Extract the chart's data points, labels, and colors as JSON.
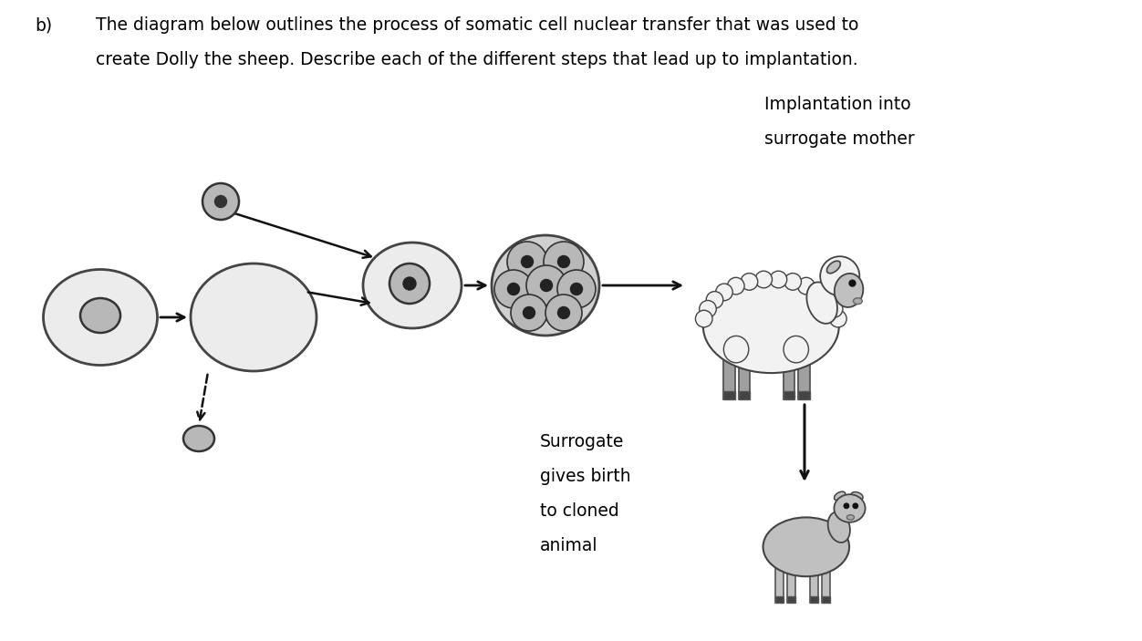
{
  "title_b": "b)",
  "question_text_line1": "The diagram below outlines the process of somatic cell nuclear transfer that was used to",
  "question_text_line2": "create Dolly the sheep. Describe each of the different steps that lead up to implantation.",
  "label_implantation_line1": "Implantation into",
  "label_implantation_line2": "surrogate mother",
  "label_surrogate_line1": "Surrogate",
  "label_surrogate_line2": "gives birth",
  "label_surrogate_line3": "to cloned",
  "label_surrogate_line4": "animal",
  "bg_color": "#ffffff",
  "cell_fill_light": "#ececec",
  "cell_fill_mid": "#d0d0d0",
  "cell_edge": "#444444",
  "nucleus_fill": "#b8b8b8",
  "nucleus_edge": "#333333",
  "arrow_color": "#111111",
  "text_color": "#000000",
  "sheep_body_white": "#f2f2f2",
  "sheep_body_gray": "#c0c0c0",
  "sheep_leg_gray": "#a0a0a0",
  "sheep_dark": "#555555"
}
